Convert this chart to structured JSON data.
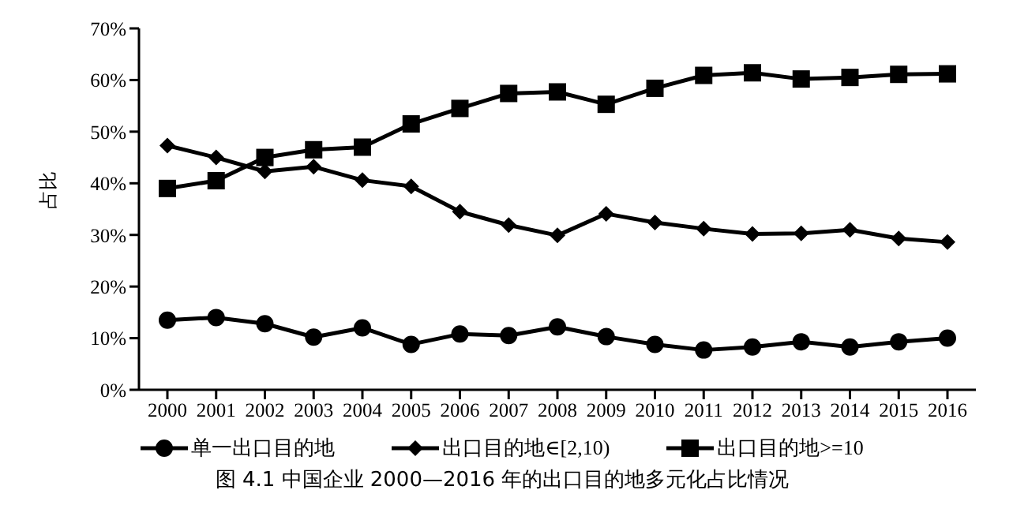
{
  "chart_data": {
    "type": "line",
    "title": "图 4.1  中国企业 2000—2016 年的出口目的地多元化占比情况",
    "ylabel": "占比",
    "categories": [
      "2000",
      "2001",
      "2002",
      "2003",
      "2004",
      "2005",
      "2006",
      "2007",
      "2008",
      "2009",
      "2010",
      "2011",
      "2012",
      "2013",
      "2014",
      "2015",
      "2016"
    ],
    "series": [
      {
        "name": "单一出口目的地",
        "color": "#000000",
        "marker": "circle",
        "values": [
          13.5,
          14,
          12.8,
          10.2,
          12,
          8.8,
          10.8,
          10.5,
          12.2,
          10.3,
          8.8,
          7.7,
          8.3,
          9.3,
          8.3,
          9.3,
          10
        ]
      },
      {
        "name": "出口目的地∈[2,10)",
        "color": "#000000",
        "marker": "diamond",
        "values": [
          47.3,
          45,
          42.3,
          43.2,
          40.6,
          39.4,
          34.5,
          31.9,
          29.9,
          34.1,
          32.4,
          31.2,
          30.2,
          30.3,
          31,
          29.3,
          28.6
        ]
      },
      {
        "name": "出口目的地>=10",
        "color": "#000000",
        "marker": "square",
        "values": [
          39,
          40.5,
          45,
          46.5,
          47,
          51.5,
          54.5,
          57.4,
          57.7,
          55.3,
          58.4,
          60.9,
          61.4,
          60.2,
          60.5,
          61.1,
          61.2
        ]
      }
    ],
    "ylim": [
      0,
      70
    ],
    "yticks": [
      {
        "value": 0,
        "label": "0%"
      },
      {
        "value": 10,
        "label": "10%"
      },
      {
        "value": 20,
        "label": "20%"
      },
      {
        "value": 30,
        "label": "30%"
      },
      {
        "value": 40,
        "label": "40%"
      },
      {
        "value": 50,
        "label": "50%"
      },
      {
        "value": 60,
        "label": "60%"
      },
      {
        "value": 70,
        "label": "70%"
      }
    ],
    "grid": false,
    "legend": "bottom",
    "line_style": "solid"
  }
}
